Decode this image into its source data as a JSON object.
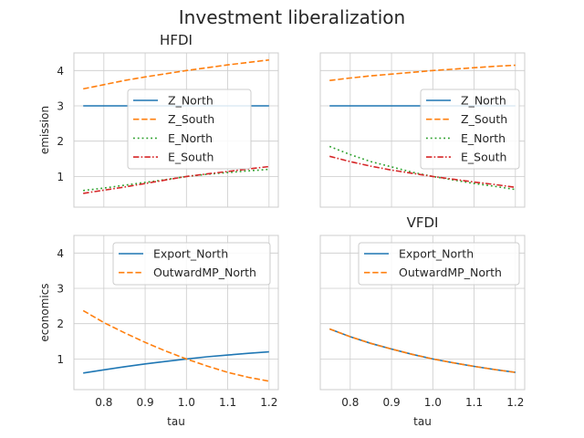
{
  "chart_data": {
    "title": "Investment liberalization",
    "grid": true,
    "panels": [
      {
        "type": "line",
        "title": "HFDI",
        "ylabel": "emission",
        "xlabel": "",
        "legend": "center-right",
        "x": [
          0.75,
          0.8,
          0.85,
          0.9,
          0.95,
          1.0,
          1.05,
          1.1,
          1.15,
          1.2
        ],
        "series": [
          {
            "name": "Z_North",
            "values": [
              3.0,
              3.0,
              3.0,
              3.0,
              3.0,
              3.0,
              3.0,
              3.0,
              3.0,
              3.0
            ],
            "color": "#1f77b4",
            "dash": "solid"
          },
          {
            "name": "Z_South",
            "values": [
              3.48,
              3.6,
              3.72,
              3.82,
              3.91,
              4.0,
              4.08,
              4.16,
              4.23,
              4.3
            ],
            "color": "#ff7f0e",
            "dash": "dashed"
          },
          {
            "name": "E_North",
            "values": [
              0.6,
              0.67,
              0.75,
              0.83,
              0.91,
              1.0,
              1.06,
              1.11,
              1.16,
              1.2
            ],
            "color": "#2ca02c",
            "dash": "dotted"
          },
          {
            "name": "E_South",
            "values": [
              0.52,
              0.61,
              0.7,
              0.8,
              0.9,
              1.0,
              1.07,
              1.14,
              1.21,
              1.28
            ],
            "color": "#d62728",
            "dash": "dashdot"
          }
        ]
      },
      {
        "type": "line",
        "title": "",
        "ylabel": "",
        "xlabel": "",
        "legend": "center-right",
        "x": [
          0.75,
          0.8,
          0.85,
          0.9,
          0.95,
          1.0,
          1.05,
          1.1,
          1.15,
          1.2
        ],
        "series": [
          {
            "name": "Z_North",
            "values": [
              3.0,
              3.0,
              3.0,
              3.0,
              3.0,
              3.0,
              3.0,
              3.0,
              3.0,
              3.0
            ],
            "color": "#1f77b4",
            "dash": "solid"
          },
          {
            "name": "Z_South",
            "values": [
              3.72,
              3.79,
              3.85,
              3.9,
              3.95,
              4.0,
              4.04,
              4.08,
              4.12,
              4.15
            ],
            "color": "#ff7f0e",
            "dash": "dashed"
          },
          {
            "name": "E_North",
            "values": [
              1.85,
              1.62,
              1.42,
              1.27,
              1.12,
              1.0,
              0.9,
              0.8,
              0.72,
              0.63
            ],
            "color": "#2ca02c",
            "dash": "dotted"
          },
          {
            "name": "E_South",
            "values": [
              1.57,
              1.42,
              1.29,
              1.18,
              1.09,
              1.0,
              0.92,
              0.84,
              0.77,
              0.69
            ],
            "color": "#d62728",
            "dash": "dashdot"
          }
        ]
      },
      {
        "type": "line",
        "title": "",
        "ylabel": "economics",
        "xlabel": "tau",
        "legend": "upper-center",
        "x": [
          0.75,
          0.8,
          0.85,
          0.9,
          0.95,
          1.0,
          1.05,
          1.1,
          1.15,
          1.2
        ],
        "series": [
          {
            "name": "Export_North",
            "values": [
              0.6,
              0.69,
              0.78,
              0.86,
              0.93,
              1.0,
              1.06,
              1.11,
              1.16,
              1.2
            ],
            "color": "#1f77b4",
            "dash": "solid"
          },
          {
            "name": "OutwardMP_North",
            "values": [
              2.37,
              2.03,
              1.74,
              1.47,
              1.22,
              1.0,
              0.8,
              0.62,
              0.48,
              0.37
            ],
            "color": "#ff7f0e",
            "dash": "dashed"
          }
        ]
      },
      {
        "type": "line",
        "title": "VFDI",
        "ylabel": "",
        "xlabel": "tau",
        "legend": "upper-right",
        "x": [
          0.75,
          0.8,
          0.85,
          0.9,
          0.95,
          1.0,
          1.05,
          1.1,
          1.15,
          1.2
        ],
        "series": [
          {
            "name": "Export_North",
            "values": [
              1.85,
              1.63,
              1.44,
              1.28,
              1.13,
              1.0,
              0.89,
              0.79,
              0.7,
              0.62
            ],
            "color": "#1f77b4",
            "dash": "solid"
          },
          {
            "name": "OutwardMP_North",
            "values": [
              1.85,
              1.63,
              1.44,
              1.28,
              1.13,
              1.0,
              0.89,
              0.79,
              0.7,
              0.62
            ],
            "color": "#ff7f0e",
            "dash": "dashed"
          }
        ]
      }
    ],
    "xlim": [
      0.7275,
      1.2225
    ],
    "ylim": [
      0.13,
      4.5
    ],
    "xticks": [
      0.8,
      0.9,
      1.0,
      1.1,
      1.2
    ],
    "xtick_labels": [
      "0.8",
      "0.9",
      "1.0",
      "1.1",
      "1.2"
    ],
    "yticks": [
      1,
      2,
      3,
      4
    ],
    "ytick_labels": [
      "1",
      "2",
      "3",
      "4"
    ]
  }
}
